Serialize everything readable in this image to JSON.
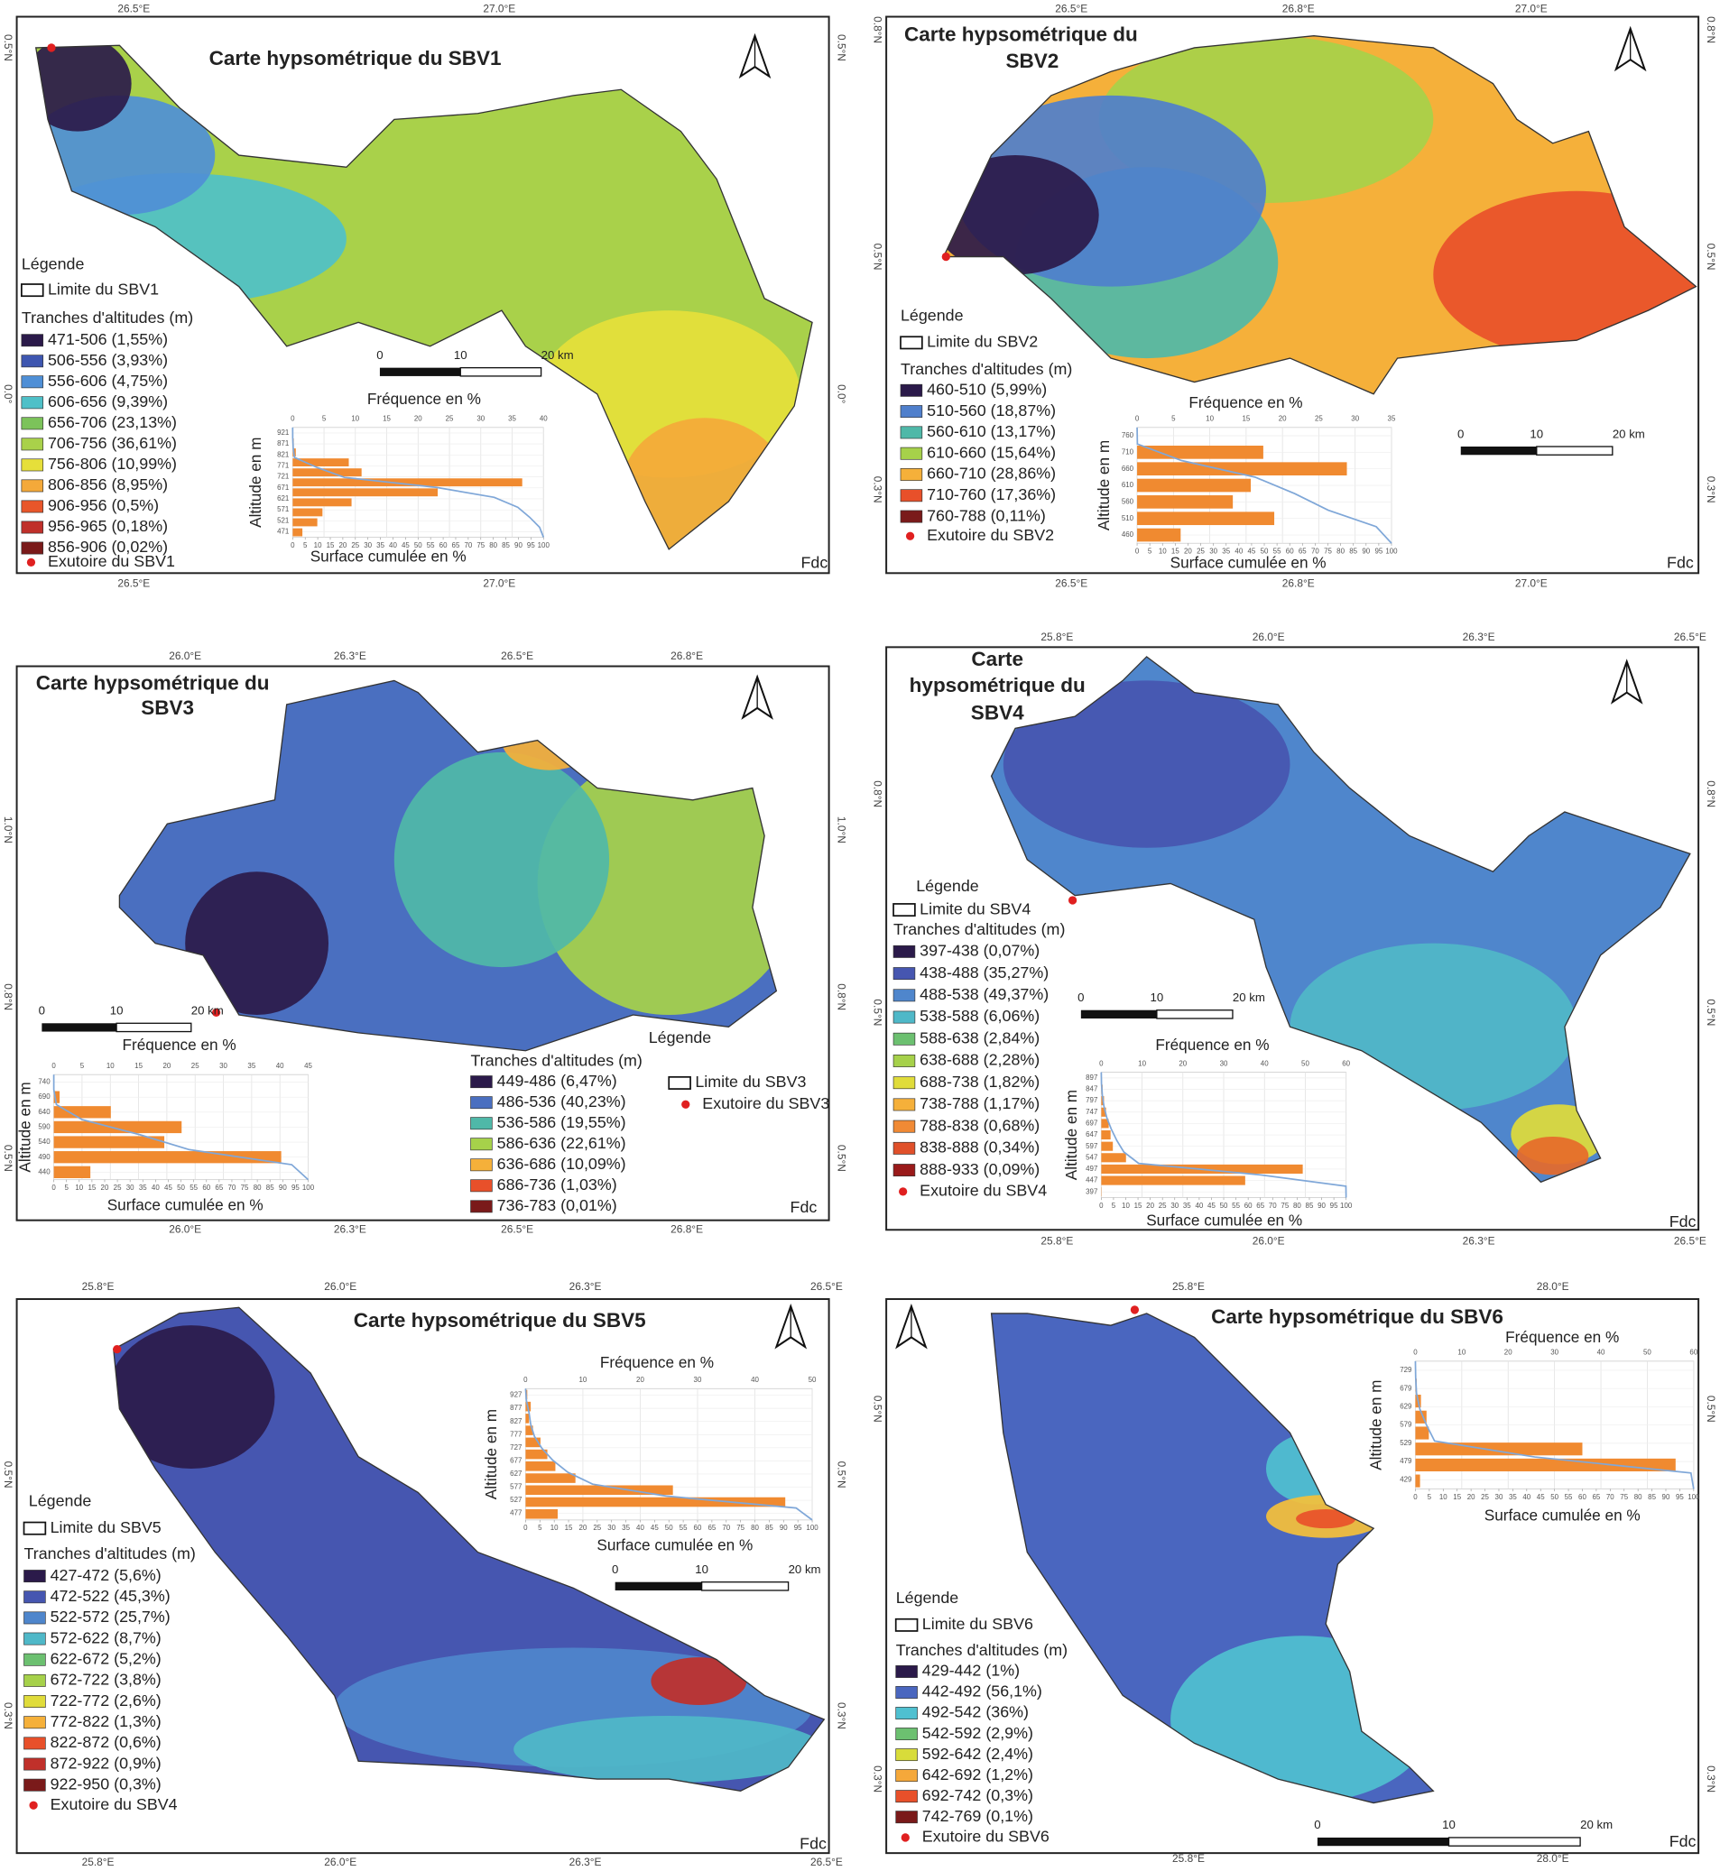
{
  "maps": [
    {
      "title": [
        "Carte  hypsométrique du SBV1"
      ],
      "lon_top": [
        "26.5°E",
        "27.0°E"
      ],
      "lon_bottom": [
        "26.5°E",
        "27.0°E"
      ],
      "lat_left": [
        "0.5°N",
        "0.0°"
      ],
      "lat_right": [
        "0.5°N",
        "0.0°"
      ],
      "legend_title": "Légende",
      "limit": "Limite du SBV1",
      "classes_title": "Tranches d'altitudes (m)",
      "classes": [
        {
          "label": "471-506 (1,55%)",
          "percent": 1.55,
          "color": "#2b1a4a"
        },
        {
          "label": "506-556 (3,93%)",
          "percent": 3.93,
          "color": "#3e56b0"
        },
        {
          "label": "556-606 (4,75%)",
          "percent": 4.75,
          "color": "#4f8fd6"
        },
        {
          "label": "606-656 (9,39%)",
          "percent": 9.39,
          "color": "#4fc0c8"
        },
        {
          "label": "656-706 (23,13%)",
          "percent": 23.13,
          "color": "#7cc35a"
        },
        {
          "label": "706-756 (36,61%)",
          "percent": 36.61,
          "color": "#a9d14a"
        },
        {
          "label": "756-806 (10,99%)",
          "percent": 10.99,
          "color": "#e6df3a"
        },
        {
          "label": "806-856 (8,95%)",
          "percent": 8.95,
          "color": "#f4a93a"
        },
        {
          "label": "906-956 (0,5%)",
          "percent": 0.5,
          "color": "#e8562a"
        },
        {
          "label": "956-965 (0,18%)",
          "percent": 0.18,
          "color": "#c0302a"
        },
        {
          "label": "856-906 (0,02%)",
          "percent": 0.02,
          "color": "#7a1a1a"
        }
      ],
      "outlet": "Exutoire du SBV1",
      "histogram": {
        "x_title": "Fréquence en %",
        "y_title": "Altitude en m",
        "x2_title": "Surface cumulée en %",
        "xlim": [
          0,
          40
        ],
        "xticks": [
          0,
          5,
          10,
          15,
          20,
          25,
          30,
          35,
          40
        ],
        "x2lim": [
          0,
          100
        ],
        "x2ticks": [
          0,
          5,
          10,
          15,
          20,
          25,
          30,
          35,
          40,
          45,
          50,
          55,
          60,
          65,
          70,
          75,
          80,
          85,
          90,
          95,
          100
        ],
        "yticks": [
          921,
          871,
          821,
          771,
          721,
          671,
          621,
          571,
          521,
          471
        ],
        "bar_color": "#f08a30",
        "curve_color": "#7fa7d8"
      },
      "scale_labels": [
        "0",
        "10",
        "20 km"
      ],
      "credit": "Fdc"
    },
    {
      "title": [
        "Carte  hypsométrique du",
        "SBV2"
      ],
      "lon_top": [
        "26.5°E",
        "26.8°E",
        "27.0°E"
      ],
      "lon_bottom": [
        "26.5°E",
        "26.8°E",
        "27.0°E"
      ],
      "lat_left": [
        "0.8°N",
        "0.5°N",
        "0.3°N"
      ],
      "lat_right": [
        "0.8°N",
        "0.5°N",
        "0.3°N"
      ],
      "legend_title": "Légende",
      "limit": "Limite du SBV2",
      "classes_title": "Tranches d'altitudes (m)",
      "classes": [
        {
          "label": "460-510 (5,99%)",
          "percent": 5.99,
          "color": "#2b1a4a"
        },
        {
          "label": "510-560 (18,87%)",
          "percent": 18.87,
          "color": "#4f7fcc"
        },
        {
          "label": "560-610 (13,17%)",
          "percent": 13.17,
          "color": "#4fb8a8"
        },
        {
          "label": "610-660 (15,64%)",
          "percent": 15.64,
          "color": "#a6d14a"
        },
        {
          "label": "660-710 (28,86%)",
          "percent": 28.86,
          "color": "#f5b03a"
        },
        {
          "label": "710-760 (17,36%)",
          "percent": 17.36,
          "color": "#e8502a"
        },
        {
          "label": "760-788 (0,11%)",
          "percent": 0.11,
          "color": "#7a1a1a"
        }
      ],
      "outlet": "Exutoire du SBV2",
      "histogram": {
        "x_title": "Fréquence en %",
        "y_title": "Altitude en m",
        "x2_title": "Surface cumulée en %",
        "xlim": [
          0,
          35
        ],
        "xticks": [
          0,
          5,
          10,
          15,
          20,
          25,
          30,
          35
        ],
        "x2lim": [
          0,
          100
        ],
        "x2ticks": [
          0,
          5,
          10,
          15,
          20,
          25,
          30,
          35,
          40,
          45,
          50,
          55,
          60,
          65,
          70,
          75,
          80,
          85,
          90,
          95,
          100
        ],
        "yticks": [
          760,
          710,
          660,
          610,
          560,
          510,
          460
        ],
        "bar_color": "#f08a30",
        "curve_color": "#7fa7d8"
      },
      "scale_labels": [
        "0",
        "10",
        "20 km"
      ],
      "credit": "Fdc"
    },
    {
      "title": [
        "Carte  hypsométrique du",
        "SBV3"
      ],
      "lon_top": [
        "26.0°E",
        "26.3°E",
        "26.5°E",
        "26.8°E"
      ],
      "lon_bottom": [
        "26.0°E",
        "26.3°E",
        "26.5°E",
        "26.8°E"
      ],
      "lat_left": [
        "1.0°N",
        "0.8°N",
        "0.5°N"
      ],
      "lat_right": [
        "1.0°N",
        "0.8°N",
        "0.5°N"
      ],
      "legend_title": "Légende",
      "limit": "Limite du SBV3",
      "classes_title": "Tranches d'altitudes (m)",
      "classes": [
        {
          "label": "449-486 (6,47%)",
          "percent": 6.47,
          "color": "#2b1a4a"
        },
        {
          "label": "486-536 (40,23%)",
          "percent": 40.23,
          "color": "#4a6fc0"
        },
        {
          "label": "536-586 (19,55%)",
          "percent": 19.55,
          "color": "#4fb8a8"
        },
        {
          "label": "586-636 (22,61%)",
          "percent": 22.61,
          "color": "#a6d14a"
        },
        {
          "label": "636-686 (10,09%)",
          "percent": 10.09,
          "color": "#f5b03a"
        },
        {
          "label": "686-736 (1,03%)",
          "percent": 1.03,
          "color": "#e8502a"
        },
        {
          "label": "736-783 (0,01%)",
          "percent": 0.01,
          "color": "#7a1a1a"
        }
      ],
      "outlet": "Exutoire du SBV3",
      "histogram": {
        "x_title": "Fréquence en %",
        "y_title": "Altitude en m",
        "x2_title": "Surface cumulée en %",
        "xlim": [
          0,
          45
        ],
        "xticks": [
          0,
          5,
          10,
          15,
          20,
          25,
          30,
          35,
          40,
          45
        ],
        "x2lim": [
          0,
          100
        ],
        "x2ticks": [
          0,
          5,
          10,
          15,
          20,
          25,
          30,
          35,
          40,
          45,
          50,
          55,
          60,
          65,
          70,
          75,
          80,
          85,
          90,
          95,
          100
        ],
        "yticks": [
          740,
          690,
          640,
          590,
          540,
          490,
          440
        ],
        "bar_color": "#f08a30",
        "curve_color": "#7fa7d8"
      },
      "scale_labels": [
        "0",
        "10",
        "20 km"
      ],
      "credit": "Fdc"
    },
    {
      "title": [
        "Carte",
        "hypsométrique du",
        "SBV4"
      ],
      "lon_top": [
        "25.8°E",
        "26.0°E",
        "26.3°E",
        "26.5°E"
      ],
      "lon_bottom": [
        "25.8°E",
        "26.0°E",
        "26.3°E",
        "26.5°E"
      ],
      "lat_left": [
        "0.8°N",
        "0.5°N"
      ],
      "lat_right": [
        "0.8°N",
        "0.5°N"
      ],
      "legend_title": "Légende",
      "limit": "Limite du SBV4",
      "classes_title": "Tranches d'altitudes (m)",
      "classes": [
        {
          "label": "397-438 (0,07%)",
          "percent": 0.07,
          "color": "#2b1a4a"
        },
        {
          "label": "438-488 (35,27%)",
          "percent": 35.27,
          "color": "#4656b0"
        },
        {
          "label": "488-538 (49,37%)",
          "percent": 49.37,
          "color": "#4f86cc"
        },
        {
          "label": "538-588 (6,06%)",
          "percent": 6.06,
          "color": "#4fb8c8"
        },
        {
          "label": "588-638 (2,84%)",
          "percent": 2.84,
          "color": "#6cc070"
        },
        {
          "label": "638-688 (2,28%)",
          "percent": 2.28,
          "color": "#a6d14a"
        },
        {
          "label": "688-738 (1,82%)",
          "percent": 1.82,
          "color": "#e0dc3a"
        },
        {
          "label": "738-788 (1,17%)",
          "percent": 1.17,
          "color": "#f5b03a"
        },
        {
          "label": "788-838 (0,68%)",
          "percent": 0.68,
          "color": "#f08a35"
        },
        {
          "label": "838-888 (0,34%)",
          "percent": 0.34,
          "color": "#e0502a"
        },
        {
          "label": "888-933 (0,09%)",
          "percent": 0.09,
          "color": "#9a1a1a"
        }
      ],
      "outlet": "Exutoire du SBV4",
      "histogram": {
        "x_title": "Fréquence en %",
        "y_title": "Altitude en m",
        "x2_title": "Surface cumulée en %",
        "xlim": [
          0,
          60
        ],
        "xticks": [
          0,
          10,
          20,
          30,
          40,
          50,
          60
        ],
        "x2lim": [
          0,
          100
        ],
        "x2ticks": [
          0,
          5,
          10,
          15,
          20,
          25,
          30,
          35,
          40,
          45,
          50,
          55,
          60,
          65,
          70,
          75,
          80,
          85,
          90,
          95,
          100
        ],
        "yticks": [
          897,
          847,
          797,
          747,
          697,
          647,
          597,
          547,
          497,
          447,
          397
        ],
        "bar_color": "#f08a30",
        "curve_color": "#7fa7d8"
      },
      "scale_labels": [
        "0",
        "10",
        "20 km"
      ],
      "credit": "Fdc"
    },
    {
      "title": [
        "Carte  hypsométrique du SBV5"
      ],
      "lon_top": [
        "25.8°E",
        "26.0°E",
        "26.3°E",
        "26.5°E"
      ],
      "lon_bottom": [
        "25.8°E",
        "26.0°E",
        "26.3°E",
        "26.5°E"
      ],
      "lat_left": [
        "0.5°N",
        "0.3°N"
      ],
      "lat_right": [
        "0.5°N",
        "0.3°N"
      ],
      "legend_title": "Légende",
      "limit": "Limite du SBV5",
      "classes_title": "Tranches d'altitudes (m)",
      "classes": [
        {
          "label": "427-472 (5,6%)",
          "percent": 5.6,
          "color": "#2b1a4a"
        },
        {
          "label": "472-522 (45,3%)",
          "percent": 45.3,
          "color": "#4656b0"
        },
        {
          "label": "522-572 (25,7%)",
          "percent": 25.7,
          "color": "#4f86cc"
        },
        {
          "label": "572-622 (8,7%)",
          "percent": 8.7,
          "color": "#4fb8c8"
        },
        {
          "label": "622-672 (5,2%)",
          "percent": 5.2,
          "color": "#6cc070"
        },
        {
          "label": "672-722 (3,8%)",
          "percent": 3.8,
          "color": "#a6d14a"
        },
        {
          "label": "722-772 (2,6%)",
          "percent": 2.6,
          "color": "#e0dc3a"
        },
        {
          "label": "772-822 (1,3%)",
          "percent": 1.3,
          "color": "#f5b03a"
        },
        {
          "label": "822-872 (0,6%)",
          "percent": 0.6,
          "color": "#e8502a"
        },
        {
          "label": "872-922 (0,9%)",
          "percent": 0.9,
          "color": "#c0302a"
        },
        {
          "label": "922-950 (0,3%)",
          "percent": 0.3,
          "color": "#7a1a1a"
        }
      ],
      "outlet": "Exutoire du SBV4",
      "histogram": {
        "x_title": "Fréquence en %",
        "y_title": "Altitude en m",
        "x2_title": "Surface cumulée en %",
        "xlim": [
          0,
          50
        ],
        "xticks": [
          0,
          10,
          20,
          30,
          40,
          50
        ],
        "x2lim": [
          0,
          100
        ],
        "x2ticks": [
          0,
          5,
          10,
          15,
          20,
          25,
          30,
          35,
          40,
          45,
          50,
          55,
          60,
          65,
          70,
          75,
          80,
          85,
          90,
          95,
          100
        ],
        "yticks": [
          927,
          877,
          827,
          777,
          727,
          677,
          627,
          577,
          527,
          477
        ],
        "bar_color": "#f08a30",
        "curve_color": "#7fa7d8"
      },
      "scale_labels": [
        "0",
        "10",
        "20 km"
      ],
      "credit": "Fdc"
    },
    {
      "title": [
        "Carte  hypsométrique du SBV6"
      ],
      "lon_top": [
        "25.8°E",
        "28.0°E"
      ],
      "lon_bottom": [
        "25.8°E",
        "28.0°E"
      ],
      "lat_left": [
        "0.5°N",
        "0.3°N"
      ],
      "lat_right": [
        "0.5°N",
        "0.3°N"
      ],
      "legend_title": "Légende",
      "limit": "Limite du SBV6",
      "classes_title": "Tranches d'altitudes (m)",
      "classes": [
        {
          "label": "429-442 (1%)",
          "percent": 1,
          "color": "#2b1a4a"
        },
        {
          "label": "442-492 (56,1%)",
          "percent": 56.1,
          "color": "#4a66bf"
        },
        {
          "label": "492-542 (36%)",
          "percent": 36,
          "color": "#4fc0d0"
        },
        {
          "label": "542-592 (2,9%)",
          "percent": 2.9,
          "color": "#6cc070"
        },
        {
          "label": "592-642 (2,4%)",
          "percent": 2.4,
          "color": "#d8dc3a"
        },
        {
          "label": "642-692 (1,2%)",
          "percent": 1.2,
          "color": "#f5a83a"
        },
        {
          "label": "692-742 (0,3%)",
          "percent": 0.3,
          "color": "#e8502a"
        },
        {
          "label": "742-769 (0,1%)",
          "percent": 0.1,
          "color": "#7a1a1a"
        }
      ],
      "outlet": "Exutoire du SBV6",
      "histogram": {
        "x_title": "Fréquence en %",
        "y_title": "Altitude en m",
        "x2_title": "Surface cumulée en %",
        "xlim": [
          0,
          60
        ],
        "xticks": [
          0,
          10,
          20,
          30,
          40,
          50,
          60
        ],
        "x2lim": [
          0,
          100
        ],
        "x2ticks": [
          0,
          5,
          10,
          15,
          20,
          25,
          30,
          35,
          40,
          45,
          50,
          55,
          60,
          65,
          70,
          75,
          80,
          85,
          90,
          95,
          100
        ],
        "yticks": [
          729,
          679,
          629,
          579,
          529,
          479,
          429
        ],
        "bar_color": "#f08a30",
        "curve_color": "#7fa7d8"
      },
      "scale_labels": [
        "0",
        "10",
        "20 km"
      ],
      "credit": "Fdc"
    }
  ]
}
